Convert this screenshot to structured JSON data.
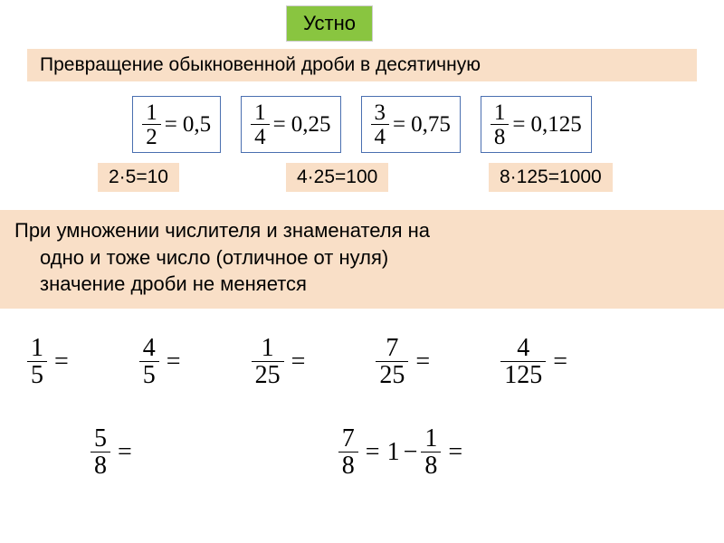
{
  "colors": {
    "header_bg": "#89c540",
    "peach_bg": "#f9dfc7",
    "box_border": "#4a6fb0",
    "text": "#000000",
    "page_bg": "#ffffff"
  },
  "header": {
    "label": "Устно"
  },
  "subtitle": {
    "text": "Превращение обыкновенной дроби в десятичную"
  },
  "examples": [
    {
      "num": "1",
      "den": "2",
      "dec": "0,5"
    },
    {
      "num": "1",
      "den": "4",
      "dec": "0,25"
    },
    {
      "num": "3",
      "den": "4",
      "dec": "0,75"
    },
    {
      "num": "1",
      "den": "8",
      "dec": "0,125"
    }
  ],
  "multiplications": [
    {
      "text": "2·5=10"
    },
    {
      "text": "4·25=100"
    },
    {
      "text": "8·125=1000"
    }
  ],
  "rule": {
    "line1": "При умножении числителя и знаменателя на",
    "line2": "одно и тоже число (отличное от нуля)",
    "line3": "значение дроби не меняется"
  },
  "exercises_row1": [
    {
      "num": "1",
      "den": "5"
    },
    {
      "num": "4",
      "den": "5"
    },
    {
      "num": "1",
      "den": "25"
    },
    {
      "num": "7",
      "den": "25"
    },
    {
      "num": "4",
      "den": "125"
    }
  ],
  "exercises_row2": {
    "a": {
      "num": "5",
      "den": "8"
    },
    "b": {
      "num": "7",
      "den": "8"
    },
    "c_whole": "1",
    "c": {
      "num": "1",
      "den": "8"
    }
  }
}
